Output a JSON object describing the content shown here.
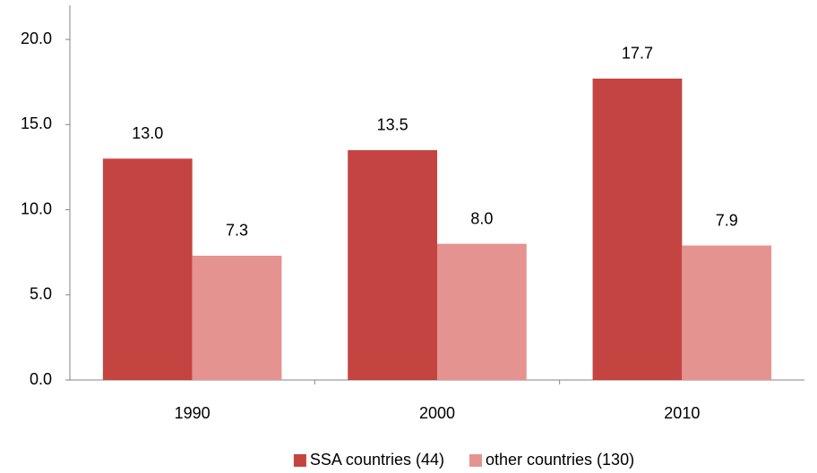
{
  "chart_data": {
    "type": "bar",
    "categories": [
      "1990",
      "2000",
      "2010"
    ],
    "series": [
      {
        "name": "SSA countries (44)",
        "color": "#c44441",
        "values": [
          13.0,
          13.5,
          17.7
        ],
        "value_labels": [
          "13.0",
          "13.5",
          "17.7"
        ]
      },
      {
        "name": "other countries (130)",
        "color": "#e59391",
        "values": [
          7.3,
          8.0,
          7.9
        ],
        "value_labels": [
          "7.3",
          "8.0",
          "7.9"
        ]
      }
    ],
    "ylim": [
      0,
      22
    ],
    "yticks": [
      {
        "value": 0,
        "label": "0.0"
      },
      {
        "value": 5,
        "label": "5.0"
      },
      {
        "value": 10,
        "label": "10.0"
      },
      {
        "value": 15,
        "label": "15.0"
      },
      {
        "value": 20,
        "label": "20.0"
      }
    ],
    "grid": false,
    "legend": "bottom"
  }
}
